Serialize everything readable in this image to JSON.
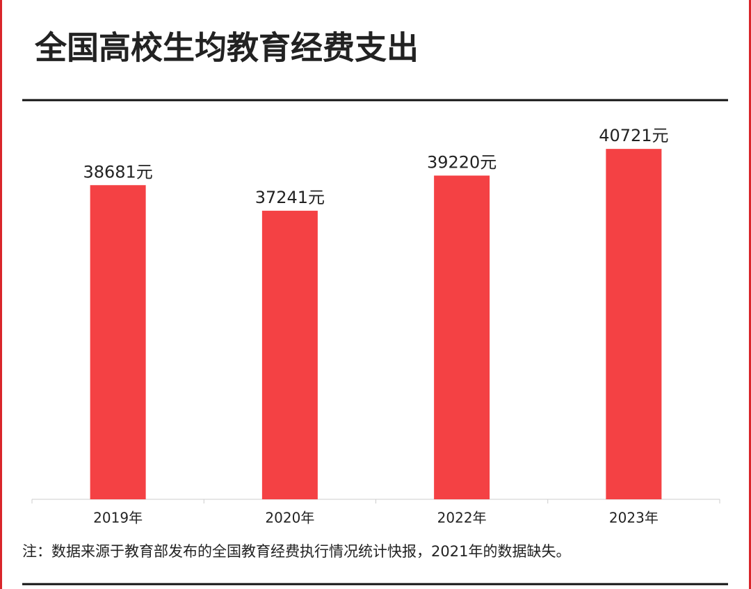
{
  "chart_data": {
    "type": "bar",
    "title": "全国高校生均教育经费支出",
    "categories": [
      "2019年",
      "2020年",
      "2022年",
      "2023年"
    ],
    "values": [
      38681,
      37241,
      39220,
      40721
    ],
    "value_labels": [
      "38681元",
      "37241元",
      "39220元",
      "40721元"
    ],
    "color": "#f44144",
    "ylim": [
      21000,
      41000
    ],
    "note": "注：数据来源于教育部发布的全国教育经费执行情况统计快报，2021年的数据缺失。"
  }
}
